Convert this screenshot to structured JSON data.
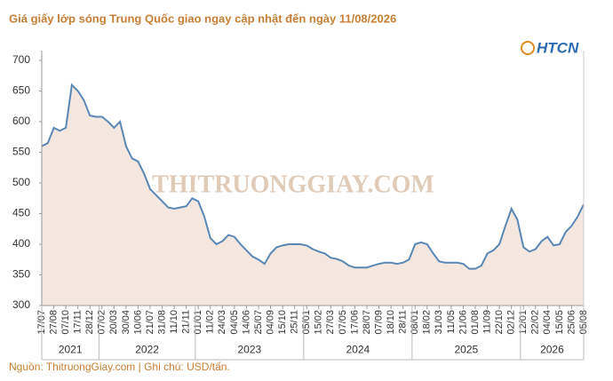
{
  "chart_data": {
    "type": "area",
    "title": "Giá giấy lớp sóng Trung Quốc giao ngay cập nhật đến ngày 11/08/2026",
    "logo": "HTCN",
    "watermark": "THITRUONGGIAY.COM",
    "source": "Nguồn: ThitruongGiay.com | Ghi chú: USD/tấn.",
    "categories": [
      "17/07",
      null,
      "27/08",
      null,
      "07/10",
      null,
      "17/11",
      null,
      "28/12",
      null,
      "07/02",
      null,
      "20/03",
      null,
      "30/04",
      null,
      "10/06",
      null,
      "21/07",
      null,
      "31/08",
      null,
      "11/10",
      null,
      "21/11",
      null,
      "01/01",
      null,
      "11/02",
      null,
      "24/03",
      null,
      "04/05",
      null,
      "14/06",
      null,
      "25/07",
      null,
      "04/09",
      null,
      "15/10",
      null,
      "25/11",
      null,
      "05/01",
      null,
      "15/02",
      null,
      "27/03",
      null,
      "07/05",
      null,
      "17/06",
      null,
      "28/07",
      null,
      "07/09",
      null,
      "18/10",
      null,
      "28/11",
      null,
      "08/01",
      null,
      "18/02",
      null,
      "31/03",
      null,
      "11/05",
      null,
      "21/06",
      null,
      "01/08",
      null,
      "11/09",
      null,
      "22/10",
      null,
      "02/12",
      null,
      "12/01",
      null,
      "22/02",
      null,
      "04/04",
      null,
      "15/05",
      null,
      "25/06",
      null,
      "05/08"
    ],
    "values": [
      560,
      565,
      590,
      585,
      590,
      660,
      650,
      635,
      610,
      608,
      608,
      600,
      590,
      600,
      560,
      540,
      535,
      515,
      490,
      480,
      470,
      460,
      458,
      460,
      462,
      475,
      470,
      445,
      410,
      400,
      405,
      415,
      412,
      400,
      390,
      380,
      375,
      368,
      385,
      395,
      398,
      400,
      400,
      400,
      398,
      392,
      388,
      385,
      378,
      376,
      372,
      365,
      362,
      362,
      362,
      365,
      368,
      370,
      370,
      368,
      370,
      375,
      400,
      403,
      400,
      385,
      372,
      370,
      370,
      370,
      368,
      360,
      360,
      365,
      385,
      390,
      400,
      430,
      458,
      440,
      395,
      388,
      392,
      405,
      412,
      398,
      400,
      420,
      430,
      445,
      465
    ],
    "years": [
      "2021",
      "2022",
      "2023",
      "2024",
      "2025",
      "2026"
    ],
    "color": "#5b87b5",
    "fill": "#f3e7df",
    "ylim": [
      300,
      700
    ],
    "yticks": [
      300,
      350,
      400,
      450,
      500,
      550,
      600,
      650,
      700
    ],
    "grid": false
  }
}
